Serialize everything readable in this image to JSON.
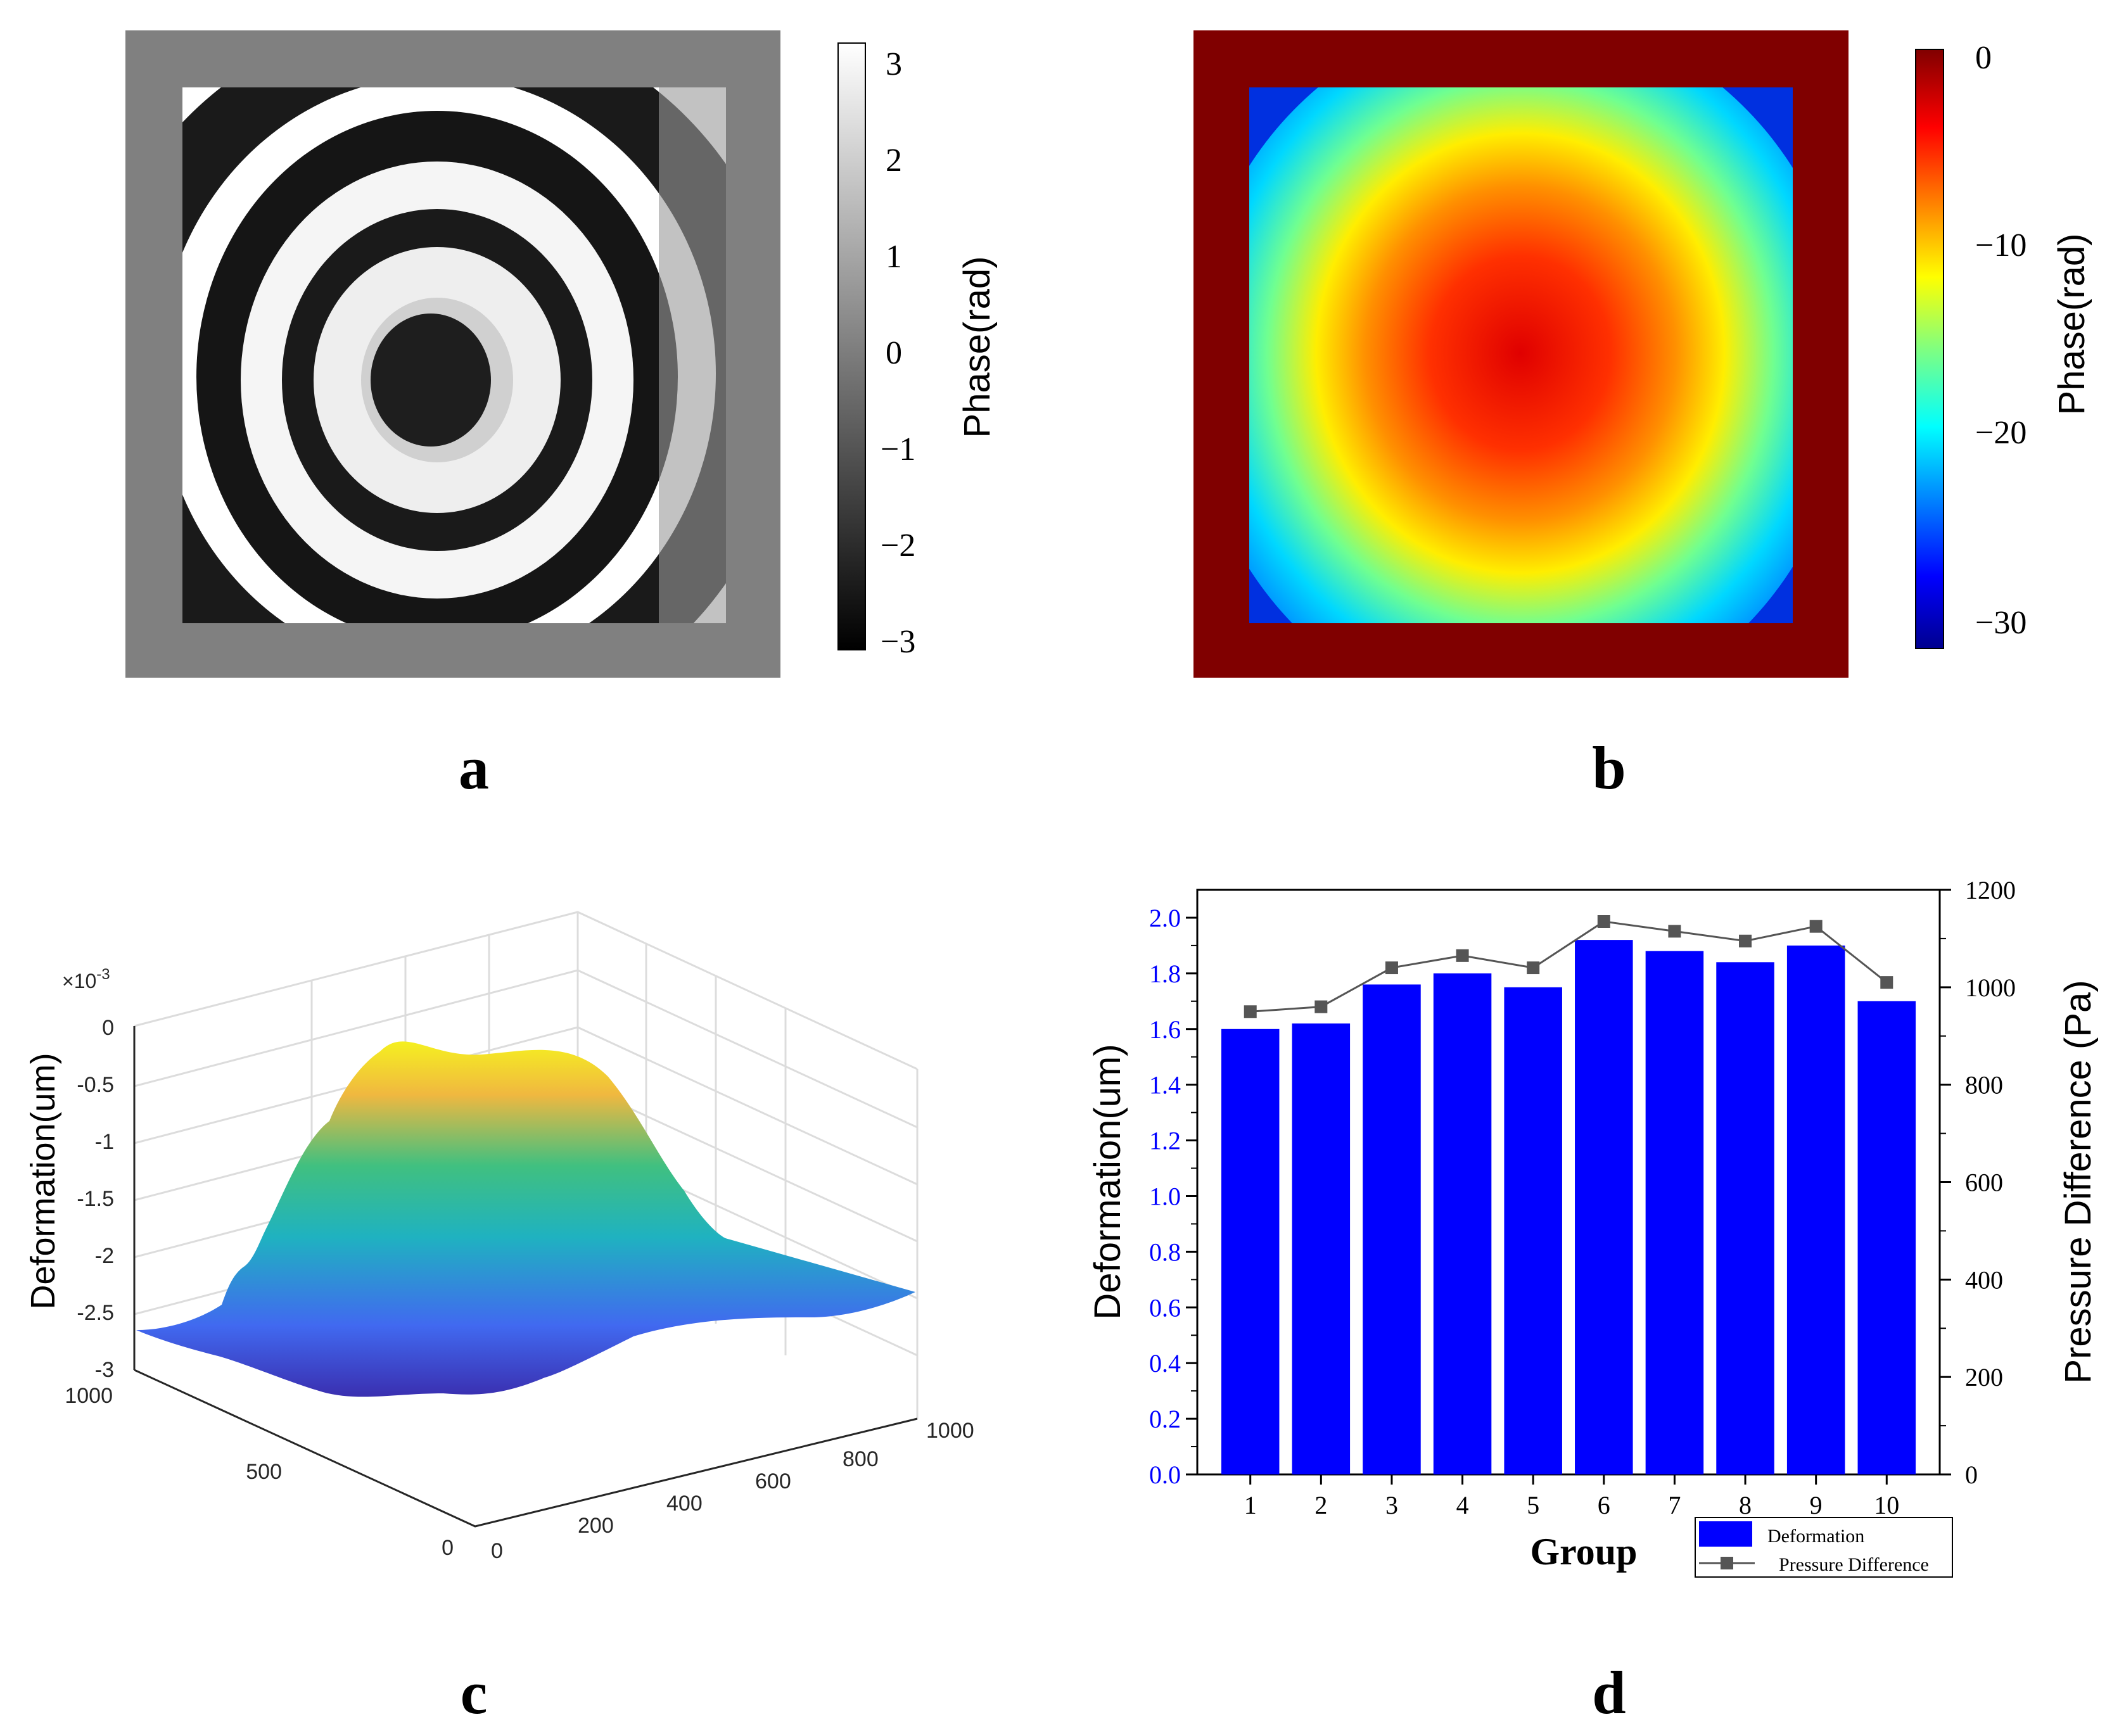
{
  "panels": {
    "a": {
      "label": "a",
      "colorbar": {
        "label": "Phase(rad)",
        "ticks": [
          "3",
          "2",
          "1",
          "0",
          "−1",
          "−2",
          "−3"
        ],
        "range": [
          -3.14,
          3.14
        ],
        "colormap": "gray"
      },
      "frame_color": "#808080"
    },
    "b": {
      "label": "b",
      "colorbar": {
        "label": "Phase(rad)",
        "ticks": [
          "0",
          "−10",
          "−20",
          "−30"
        ],
        "range": [
          -31,
          0
        ],
        "colormap": "jet"
      },
      "frame_color": "#800000"
    },
    "c": {
      "label": "c",
      "zlabel": "Deformation(um)",
      "exponent_base": "×10",
      "exponent_power": "-3",
      "z_ticks": [
        "0",
        "-0.5",
        "-1",
        "-1.5",
        "-2",
        "-2.5",
        "-3"
      ],
      "y_ticks": [
        "1000",
        "500",
        "0"
      ],
      "x_ticks": [
        "0",
        "200",
        "400",
        "600",
        "800",
        "1000"
      ]
    },
    "d": {
      "label": "d"
    }
  },
  "chart_data": [
    {
      "id": "a",
      "type": "heatmap",
      "title": "",
      "description": "wrapped phase fringe map",
      "colorbar_label": "Phase(rad)",
      "clim": [
        -3.14,
        3.14
      ],
      "colorbar_ticks": [
        3,
        2,
        1,
        0,
        -1,
        -2,
        -3
      ]
    },
    {
      "id": "b",
      "type": "heatmap",
      "title": "",
      "description": "unwrapped phase map",
      "colorbar_label": "Phase(rad)",
      "clim": [
        -31,
        0
      ],
      "colorbar_ticks": [
        0,
        -10,
        -20,
        -30
      ]
    },
    {
      "id": "c",
      "type": "surface",
      "zlabel": "Deformation(um)",
      "zlim": [
        -0.003,
        0
      ],
      "xlim": [
        0,
        1000
      ],
      "ylim": [
        0,
        1000
      ],
      "z_peak": -0.00025,
      "z_base": -0.0027
    },
    {
      "id": "d",
      "type": "bar",
      "xlabel": "Group",
      "ylabel": "Deformation(um)",
      "y2label": "Pressure Difference (Pa)",
      "categories": [
        "1",
        "2",
        "3",
        "4",
        "5",
        "6",
        "7",
        "8",
        "9",
        "10"
      ],
      "ylim": [
        0,
        2.1
      ],
      "y2lim": [
        0,
        1200
      ],
      "y_ticks": [
        "0.0",
        "0.2",
        "0.4",
        "0.6",
        "0.8",
        "1.0",
        "1.2",
        "1.4",
        "1.6",
        "1.8",
        "2.0"
      ],
      "y2_ticks": [
        "0",
        "200",
        "400",
        "600",
        "800",
        "1000",
        "1200"
      ],
      "series": [
        {
          "name": "Deformation",
          "kind": "bar",
          "axis": "left",
          "color": "#0000ff",
          "values": [
            1.6,
            1.62,
            1.76,
            1.8,
            1.75,
            1.92,
            1.88,
            1.84,
            1.9,
            1.7
          ]
        },
        {
          "name": "Pressure Difference",
          "kind": "line",
          "axis": "right",
          "color": "#555555",
          "values": [
            950,
            960,
            1040,
            1065,
            1040,
            1135,
            1115,
            1095,
            1125,
            1010
          ]
        }
      ],
      "legend": "bottom-right"
    }
  ]
}
